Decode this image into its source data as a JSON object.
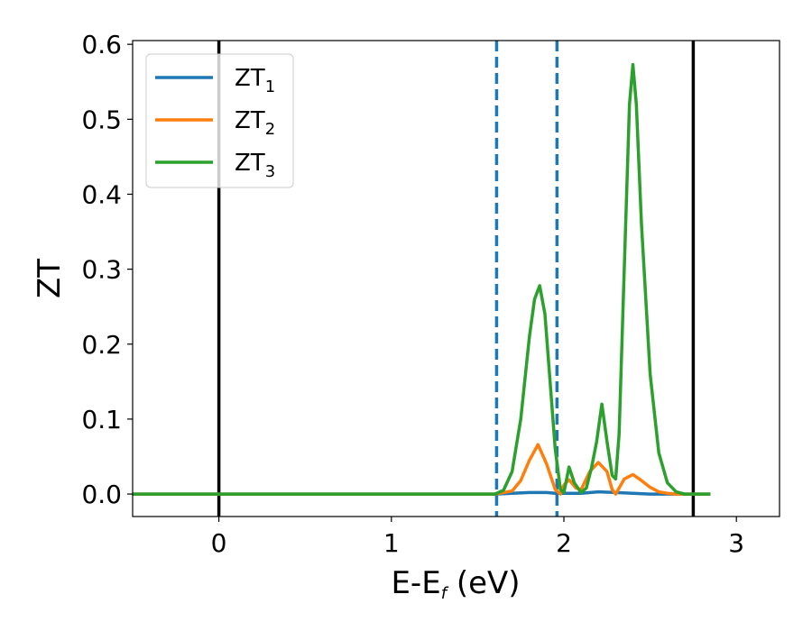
{
  "chart_data": {
    "type": "line",
    "title": "",
    "xlabel": {
      "base": "E-E",
      "sub": "f",
      "suffix": " (eV)"
    },
    "ylabel": "ZT",
    "xlim": [
      -0.5,
      3.25
    ],
    "ylim": [
      -0.03,
      0.605
    ],
    "xticks": [
      0,
      1,
      2,
      3
    ],
    "yticks": [
      0.0,
      0.1,
      0.2,
      0.3,
      0.4,
      0.5,
      0.6
    ],
    "grid": false,
    "legend": {
      "position": "top-left"
    },
    "colors": {
      "ZT1": "#1f77b4",
      "ZT2": "#ff7f0e",
      "ZT3": "#2ca02c",
      "vline_solid": "#000000"
    },
    "series": [
      {
        "name": "ZT1",
        "label_base": "ZT",
        "label_sub": "1",
        "x": [
          -0.5,
          1.6,
          1.7,
          1.8,
          1.85,
          1.9,
          1.95,
          2.0,
          2.1,
          2.2,
          2.3,
          2.4,
          2.5,
          2.6,
          2.85
        ],
        "y": [
          0.0,
          0.0,
          0.001,
          0.002,
          0.002,
          0.002,
          0.001,
          0.001,
          0.001,
          0.003,
          0.002,
          0.001,
          0.0,
          0.0,
          0.0
        ]
      },
      {
        "name": "ZT2",
        "label_base": "ZT",
        "label_sub": "2",
        "x": [
          -0.5,
          1.6,
          1.7,
          1.75,
          1.8,
          1.85,
          1.9,
          1.95,
          1.98,
          2.0,
          2.03,
          2.07,
          2.1,
          2.15,
          2.2,
          2.25,
          2.28,
          2.3,
          2.35,
          2.4,
          2.45,
          2.5,
          2.55,
          2.6,
          2.65,
          2.85
        ],
        "y": [
          0.0,
          0.0,
          0.004,
          0.018,
          0.045,
          0.066,
          0.04,
          0.006,
          0.0,
          0.012,
          0.019,
          0.008,
          0.006,
          0.03,
          0.042,
          0.03,
          0.006,
          0.0,
          0.02,
          0.026,
          0.018,
          0.009,
          0.003,
          0.001,
          0.0,
          0.0
        ]
      },
      {
        "name": "ZT3",
        "label_base": "ZT",
        "label_sub": "3",
        "x": [
          -0.5,
          1.6,
          1.65,
          1.7,
          1.75,
          1.8,
          1.83,
          1.86,
          1.89,
          1.92,
          1.95,
          1.98,
          2.0,
          2.03,
          2.06,
          2.1,
          2.13,
          2.16,
          2.19,
          2.22,
          2.25,
          2.28,
          2.3,
          2.32,
          2.35,
          2.38,
          2.4,
          2.42,
          2.45,
          2.5,
          2.55,
          2.6,
          2.65,
          2.7,
          2.85
        ],
        "y": [
          0.0,
          0.0,
          0.005,
          0.03,
          0.1,
          0.21,
          0.26,
          0.278,
          0.24,
          0.15,
          0.06,
          0.006,
          0.002,
          0.036,
          0.015,
          0.002,
          0.008,
          0.035,
          0.07,
          0.12,
          0.07,
          0.025,
          0.02,
          0.08,
          0.3,
          0.52,
          0.573,
          0.52,
          0.36,
          0.16,
          0.055,
          0.015,
          0.003,
          0.0,
          0.0
        ]
      }
    ],
    "vlines": [
      {
        "x": 0.0,
        "style": "solid",
        "color": "#000000"
      },
      {
        "x": 1.61,
        "style": "dashed",
        "color": "#1f77b4"
      },
      {
        "x": 1.96,
        "style": "dashed",
        "color": "#1f77b4"
      },
      {
        "x": 2.75,
        "style": "solid",
        "color": "#000000"
      }
    ]
  }
}
